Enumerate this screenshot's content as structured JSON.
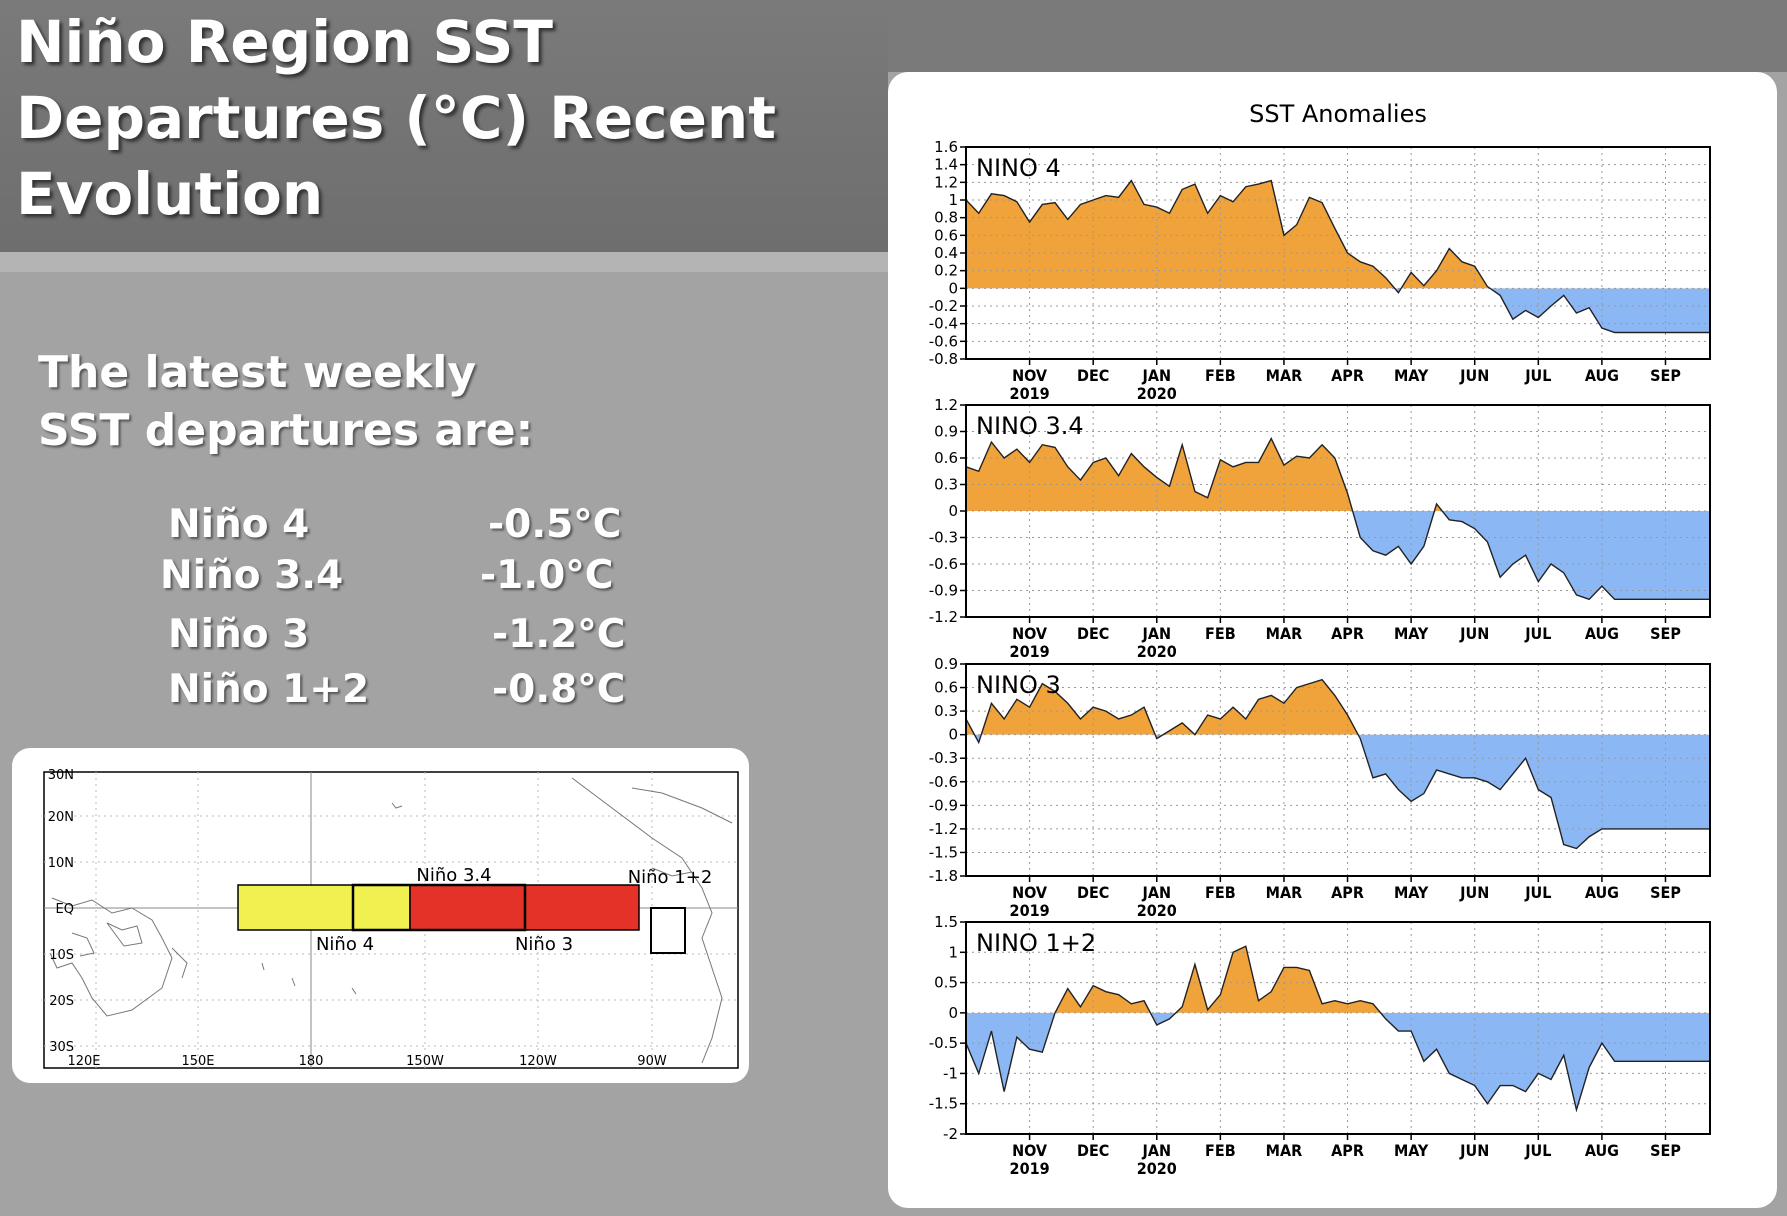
{
  "slide": {
    "title": "Niño Region SST Departures (°C) Recent Evolution",
    "intro_line1": "The latest weekly",
    "intro_line2": "SST departures are:",
    "departures": [
      {
        "region": "Niño 4",
        "value": "-0.5°C"
      },
      {
        "region": "Niño 3.4",
        "value": "-1.0°C"
      },
      {
        "region": "Niño 3",
        "value": "-1.2°C"
      },
      {
        "region": "Niño 1+2",
        "value": "-0.8°C"
      }
    ]
  },
  "map": {
    "lat_labels": [
      "30N",
      "20N",
      "10N",
      "EQ",
      "10S",
      "20S",
      "30S"
    ],
    "lon_labels": [
      "120E",
      "150E",
      "180",
      "150W",
      "120W",
      "90W"
    ],
    "region_labels": {
      "nino34": "Niño 3.4",
      "nino4": "Niño 4",
      "nino3": "Niño 3",
      "nino12": "Niño 1+2"
    },
    "colors": {
      "nino4": "#f0f050",
      "nino3": "#e43228",
      "nino12": "#ffffff"
    }
  },
  "chart_data": {
    "type": "area",
    "title": "SST Anomalies",
    "x_month_labels": [
      "NOV",
      "DEC",
      "JAN",
      "FEB",
      "MAR",
      "APR",
      "MAY",
      "JUN",
      "JUL",
      "AUG",
      "SEP"
    ],
    "x_year_labels": {
      "NOV": "2019",
      "JAN": "2020"
    },
    "x_range_months": [
      -0.5,
      11.2
    ],
    "month_positions": [
      0.5,
      1.5,
      2.5,
      3.5,
      4.5,
      5.5,
      6.5,
      7.5,
      8.5,
      9.5,
      10.5
    ],
    "positive_color": "#f0a33a",
    "negative_color": "#8cb7f5",
    "panels": [
      {
        "name": "NINO 4",
        "ylim": [
          -0.8,
          1.6
        ],
        "yticks": [
          "1.6",
          "1.4",
          "1.2",
          "1",
          "0.8",
          "0.6",
          "0.4",
          "0.2",
          "0",
          "-0.2",
          "-0.4",
          "-0.6",
          "-0.8"
        ],
        "x": [
          -0.5,
          -0.3,
          -0.1,
          0.1,
          0.3,
          0.5,
          0.7,
          0.9,
          1.1,
          1.3,
          1.5,
          1.7,
          1.9,
          2.1,
          2.3,
          2.5,
          2.7,
          2.9,
          3.1,
          3.3,
          3.5,
          3.7,
          3.9,
          4.1,
          4.3,
          4.5,
          4.7,
          4.9,
          5.1,
          5.3,
          5.5,
          5.7,
          5.9,
          6.1,
          6.3,
          6.5,
          6.7,
          6.9,
          7.1,
          7.3,
          7.5,
          7.7,
          7.9,
          8.1,
          8.3,
          8.5,
          8.7,
          8.9,
          9.1,
          9.3,
          9.5,
          9.7,
          9.9,
          10.1,
          10.3,
          10.5,
          10.7,
          10.9,
          11.2
        ],
        "values": [
          1.0,
          0.85,
          1.07,
          1.05,
          0.98,
          0.75,
          0.95,
          0.97,
          0.78,
          0.95,
          1.0,
          1.05,
          1.03,
          1.22,
          0.95,
          0.92,
          0.85,
          1.12,
          1.18,
          0.85,
          1.05,
          0.98,
          1.15,
          1.18,
          1.22,
          0.6,
          0.72,
          1.03,
          0.97,
          0.68,
          0.4,
          0.3,
          0.25,
          0.12,
          -0.05,
          0.18,
          0.03,
          0.2,
          0.45,
          0.3,
          0.25,
          0.02,
          -0.08,
          -0.35,
          -0.25,
          -0.33,
          -0.2,
          -0.08,
          -0.28,
          -0.22,
          -0.45,
          -0.5,
          -0.5,
          -0.5,
          -0.5,
          -0.5,
          -0.5,
          -0.5,
          -0.5
        ]
      },
      {
        "name": "NINO 3.4",
        "ylim": [
          -1.2,
          1.2
        ],
        "yticks": [
          "1.2",
          "0.9",
          "0.6",
          "0.3",
          "0",
          "-0.3",
          "-0.6",
          "-0.9",
          "-1.2"
        ],
        "x": [
          -0.5,
          -0.3,
          -0.1,
          0.1,
          0.3,
          0.5,
          0.7,
          0.9,
          1.1,
          1.3,
          1.5,
          1.7,
          1.9,
          2.1,
          2.3,
          2.5,
          2.7,
          2.9,
          3.1,
          3.3,
          3.5,
          3.7,
          3.9,
          4.1,
          4.3,
          4.5,
          4.7,
          4.9,
          5.1,
          5.3,
          5.5,
          5.7,
          5.9,
          6.1,
          6.3,
          6.5,
          6.7,
          6.9,
          7.1,
          7.3,
          7.5,
          7.7,
          7.9,
          8.1,
          8.3,
          8.5,
          8.7,
          8.9,
          9.1,
          9.3,
          9.5,
          9.7,
          9.9,
          10.1,
          10.3,
          10.5,
          10.7,
          10.9,
          11.2
        ],
        "values": [
          0.5,
          0.45,
          0.78,
          0.6,
          0.7,
          0.55,
          0.75,
          0.72,
          0.5,
          0.35,
          0.55,
          0.6,
          0.4,
          0.65,
          0.5,
          0.38,
          0.28,
          0.75,
          0.22,
          0.15,
          0.58,
          0.5,
          0.55,
          0.55,
          0.82,
          0.52,
          0.62,
          0.6,
          0.75,
          0.6,
          0.2,
          -0.3,
          -0.45,
          -0.5,
          -0.4,
          -0.6,
          -0.4,
          0.08,
          -0.1,
          -0.12,
          -0.2,
          -0.35,
          -0.75,
          -0.6,
          -0.5,
          -0.8,
          -0.6,
          -0.7,
          -0.95,
          -1.0,
          -0.85,
          -1.0,
          -1.0,
          -1.0,
          -1.0,
          -1.0,
          -1.0,
          -1.0,
          -1.0
        ]
      },
      {
        "name": "NINO 3",
        "ylim": [
          -1.8,
          0.9
        ],
        "yticks": [
          "0.9",
          "0.6",
          "0.3",
          "0",
          "-0.3",
          "-0.6",
          "-0.9",
          "-1.2",
          "-1.5",
          "-1.8"
        ],
        "x": [
          -0.5,
          -0.3,
          -0.1,
          0.1,
          0.3,
          0.5,
          0.7,
          0.9,
          1.1,
          1.3,
          1.5,
          1.7,
          1.9,
          2.1,
          2.3,
          2.5,
          2.7,
          2.9,
          3.1,
          3.3,
          3.5,
          3.7,
          3.9,
          4.1,
          4.3,
          4.5,
          4.7,
          4.9,
          5.1,
          5.3,
          5.5,
          5.7,
          5.9,
          6.1,
          6.3,
          6.5,
          6.7,
          6.9,
          7.1,
          7.3,
          7.5,
          7.7,
          7.9,
          8.1,
          8.3,
          8.5,
          8.7,
          8.9,
          9.1,
          9.3,
          9.5,
          9.7,
          9.9,
          10.1,
          10.3,
          10.5,
          10.7,
          10.9,
          11.2
        ],
        "values": [
          0.2,
          -0.1,
          0.4,
          0.2,
          0.45,
          0.35,
          0.65,
          0.55,
          0.4,
          0.2,
          0.35,
          0.3,
          0.2,
          0.25,
          0.35,
          -0.05,
          0.05,
          0.15,
          0.0,
          0.25,
          0.2,
          0.35,
          0.2,
          0.45,
          0.5,
          0.4,
          0.6,
          0.65,
          0.7,
          0.5,
          0.25,
          -0.05,
          -0.55,
          -0.5,
          -0.7,
          -0.85,
          -0.75,
          -0.45,
          -0.5,
          -0.55,
          -0.55,
          -0.6,
          -0.7,
          -0.5,
          -0.3,
          -0.7,
          -0.8,
          -1.4,
          -1.45,
          -1.3,
          -1.2,
          -1.2,
          -1.2,
          -1.2,
          -1.2,
          -1.2,
          -1.2,
          -1.2,
          -1.2
        ]
      },
      {
        "name": "NINO 1+2",
        "ylim": [
          -2.0,
          1.5
        ],
        "yticks": [
          "1.5",
          "1",
          "0.5",
          "0",
          "-0.5",
          "-1",
          "-1.5",
          "-2"
        ],
        "x": [
          -0.5,
          -0.3,
          -0.1,
          0.1,
          0.3,
          0.5,
          0.7,
          0.9,
          1.1,
          1.3,
          1.5,
          1.7,
          1.9,
          2.1,
          2.3,
          2.5,
          2.7,
          2.9,
          3.1,
          3.3,
          3.5,
          3.7,
          3.9,
          4.1,
          4.3,
          4.5,
          4.7,
          4.9,
          5.1,
          5.3,
          5.5,
          5.7,
          5.9,
          6.1,
          6.3,
          6.5,
          6.7,
          6.9,
          7.1,
          7.3,
          7.5,
          7.7,
          7.9,
          8.1,
          8.3,
          8.5,
          8.7,
          8.9,
          9.1,
          9.3,
          9.5,
          9.7,
          9.9,
          10.1,
          10.3,
          10.5,
          10.7,
          10.9,
          11.2
        ],
        "values": [
          -0.5,
          -1.0,
          -0.3,
          -1.3,
          -0.4,
          -0.6,
          -0.65,
          0.0,
          0.4,
          0.1,
          0.45,
          0.35,
          0.3,
          0.15,
          0.2,
          -0.2,
          -0.1,
          0.1,
          0.8,
          0.05,
          0.3,
          1.0,
          1.1,
          0.2,
          0.35,
          0.75,
          0.75,
          0.7,
          0.15,
          0.2,
          0.15,
          0.2,
          0.15,
          -0.1,
          -0.3,
          -0.3,
          -0.8,
          -0.6,
          -1.0,
          -1.1,
          -1.2,
          -1.5,
          -1.2,
          -1.2,
          -1.3,
          -1.0,
          -1.1,
          -0.7,
          -1.6,
          -0.9,
          -0.5,
          -0.8,
          -0.8,
          -0.8,
          -0.8,
          -0.8,
          -0.8,
          -0.8,
          -0.8
        ]
      }
    ]
  }
}
